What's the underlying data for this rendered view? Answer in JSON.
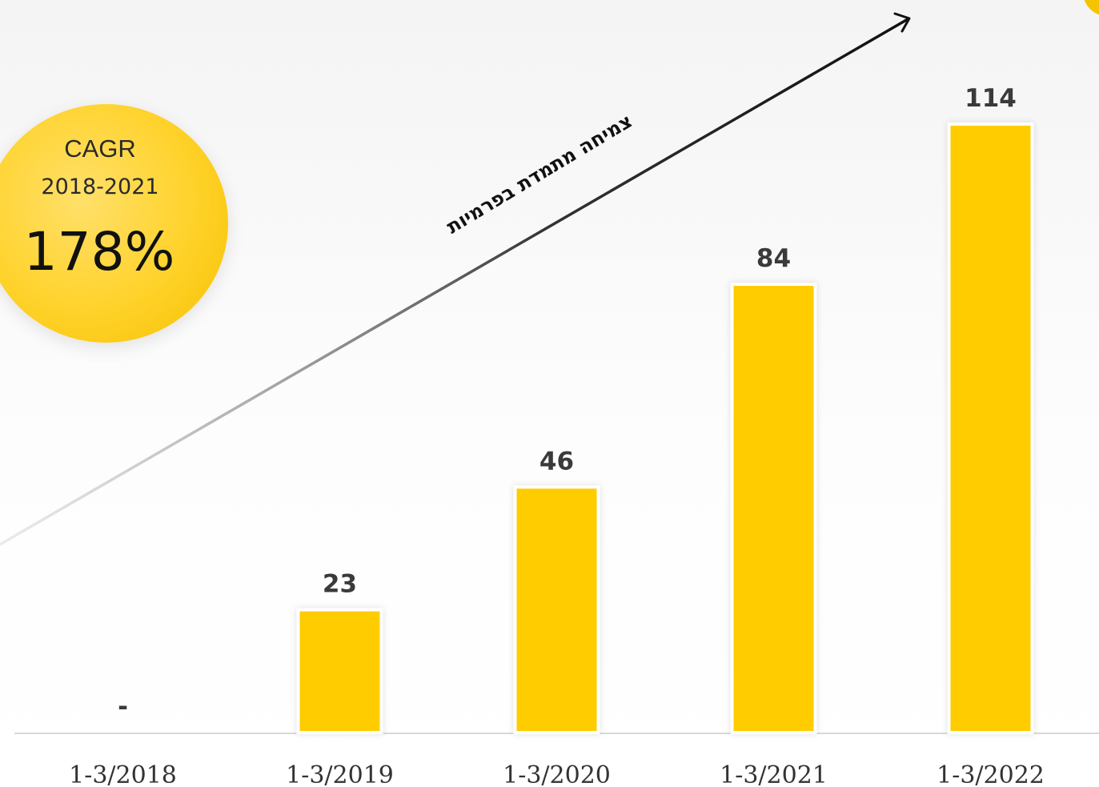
{
  "cagr": {
    "label": "CAGR",
    "period": "2018-2021",
    "value": "178%"
  },
  "trend_annotation": "צמיחה מתמדת בפרמיות",
  "chart_data": {
    "type": "bar",
    "categories": [
      "1-3/2018",
      "1-3/2019",
      "1-3/2020",
      "1-3/2021",
      "1-3/2022"
    ],
    "values": [
      0,
      23,
      46,
      84,
      114
    ],
    "value_labels": [
      "-",
      "23",
      "46",
      "84",
      "114"
    ],
    "ylim": [
      0,
      114
    ],
    "grid": false,
    "legend": "none",
    "annotations": [
      "צמיחה מתמדת בפרמיות"
    ],
    "colors": {
      "bar": "#ffcc00",
      "bar_outline": "#ffffff",
      "trend_line": "#222222"
    }
  }
}
